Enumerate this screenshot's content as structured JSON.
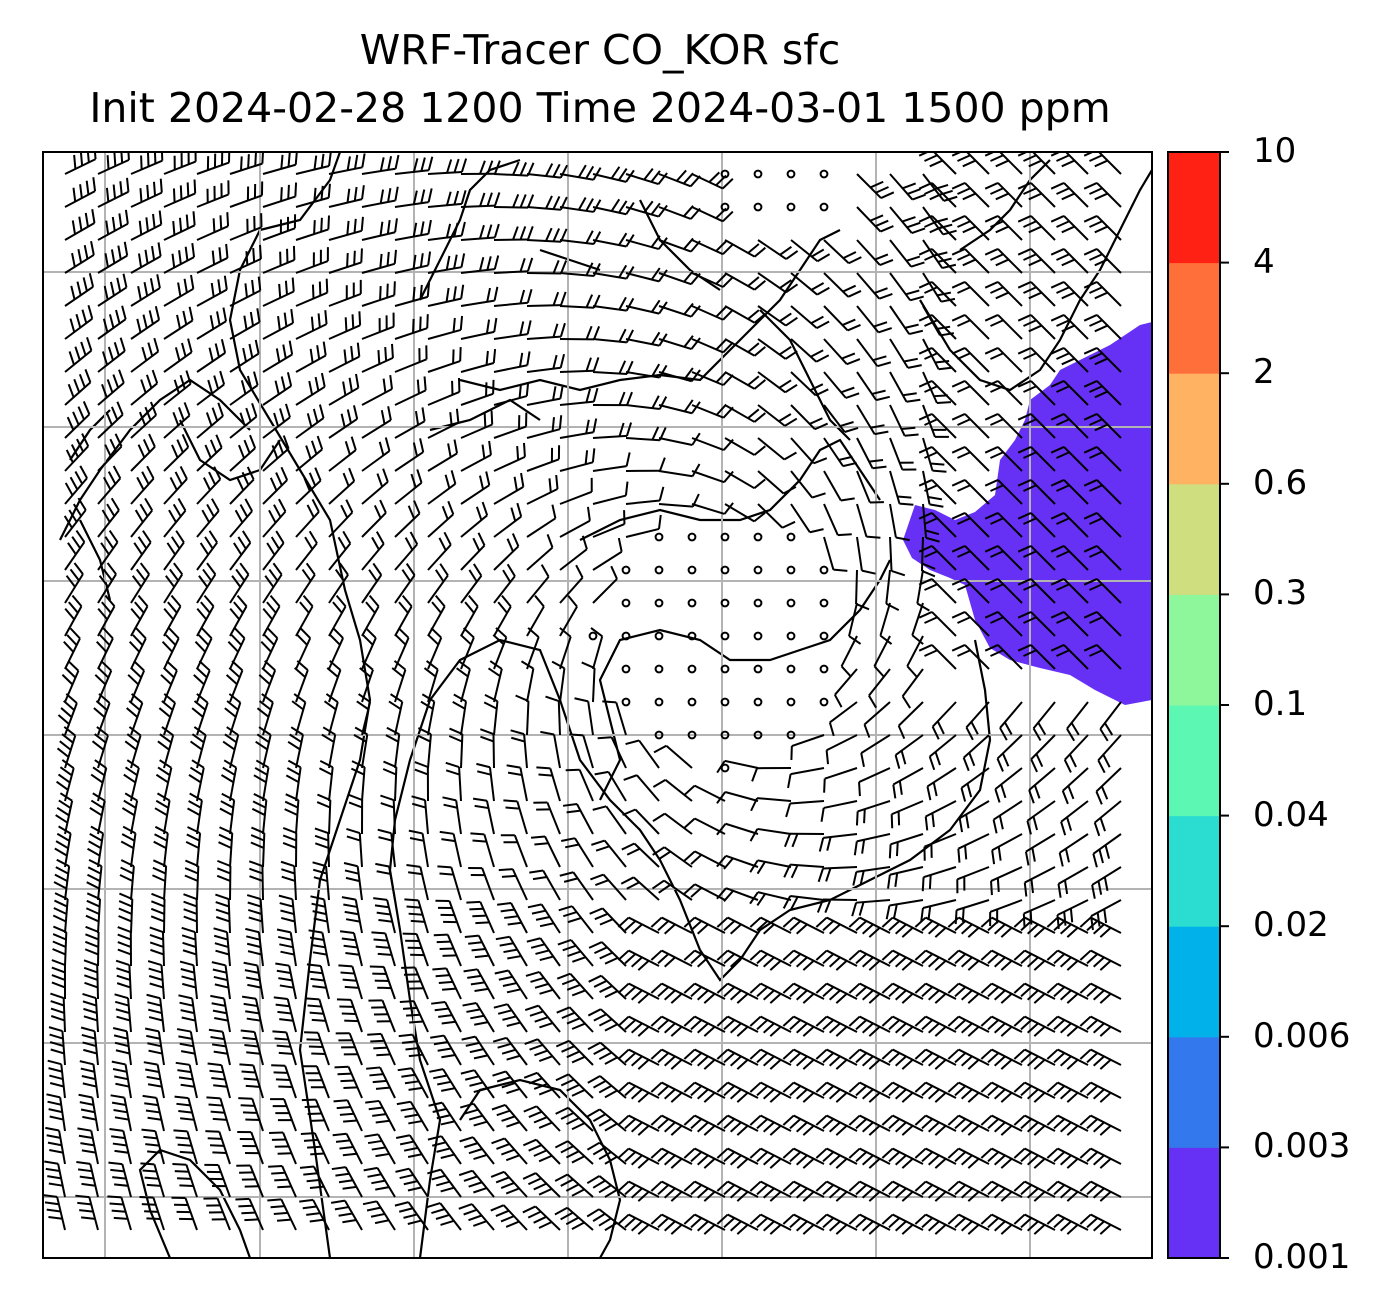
{
  "title": {
    "line1": "WRF-Tracer CO_KOR sfc",
    "line2": "Init 2024-02-28 1200 Time 2024-03-01 1500 ppm"
  },
  "colorbar": {
    "levels": [
      "0.001",
      "0.003",
      "0.006",
      "0.02",
      "0.04",
      "0.1",
      "0.3",
      "0.6",
      "2",
      "4",
      "10"
    ],
    "colors": [
      "#6631f5",
      "#3378ec",
      "#00b2e9",
      "#2bdcd1",
      "#5df7b4",
      "#8ef79c",
      "#cfde7f",
      "#ffb262",
      "#ff6f3a",
      "#ff2214"
    ]
  },
  "map": {
    "tracer_fill_color": "#6631f5",
    "coastline_color": "#000000",
    "gridline_color": "#b3b3b3",
    "wind_barbs": "black"
  }
}
